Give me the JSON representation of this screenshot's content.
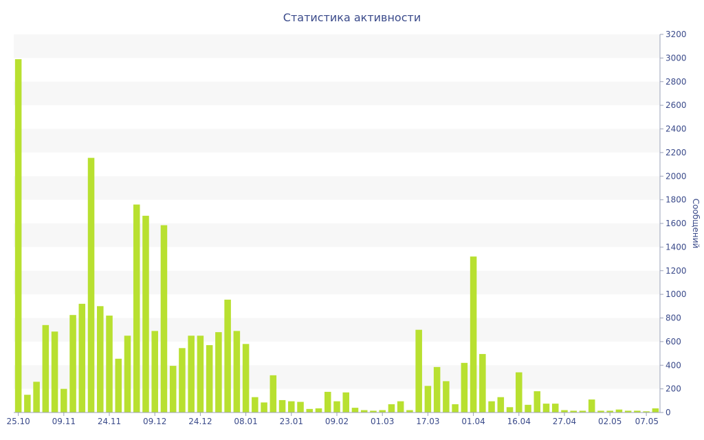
{
  "chart_data": {
    "type": "bar",
    "title": "Статистика активности",
    "ylabel": "Сообщений",
    "ylim": [
      0,
      3200
    ],
    "y_ticks": [
      0,
      200,
      400,
      600,
      800,
      1000,
      1200,
      1400,
      1600,
      1800,
      2000,
      2200,
      2400,
      2600,
      2800,
      3000,
      3200
    ],
    "y_axis_side": "right",
    "grid": "alternating horizontal bands",
    "bar_color": "#b8e030",
    "x_tick_labels": [
      {
        "label": "25.10",
        "index": 0
      },
      {
        "label": "09.11",
        "index": 5
      },
      {
        "label": "24.11",
        "index": 10
      },
      {
        "label": "09.12",
        "index": 15
      },
      {
        "label": "24.12",
        "index": 20
      },
      {
        "label": "08.01",
        "index": 25
      },
      {
        "label": "23.01",
        "index": 30
      },
      {
        "label": "09.02",
        "index": 35
      },
      {
        "label": "01.03",
        "index": 40
      },
      {
        "label": "17.03",
        "index": 45
      },
      {
        "label": "01.04",
        "index": 50
      },
      {
        "label": "16.04",
        "index": 55
      },
      {
        "label": "27.04",
        "index": 60
      },
      {
        "label": "02.05",
        "index": 65
      },
      {
        "label": "07.05",
        "index": 69
      }
    ],
    "values": [
      2990,
      150,
      260,
      740,
      685,
      200,
      825,
      920,
      2155,
      900,
      820,
      455,
      650,
      1760,
      1665,
      690,
      1585,
      395,
      545,
      650,
      650,
      570,
      680,
      955,
      690,
      580,
      130,
      85,
      315,
      105,
      95,
      90,
      30,
      35,
      175,
      95,
      170,
      40,
      20,
      15,
      20,
      70,
      95,
      20,
      700,
      225,
      385,
      265,
      70,
      420,
      1320,
      495,
      95,
      130,
      45,
      340,
      65,
      180,
      75,
      75,
      20,
      15,
      15,
      110,
      15,
      15,
      25,
      15,
      15,
      10,
      35
    ]
  }
}
